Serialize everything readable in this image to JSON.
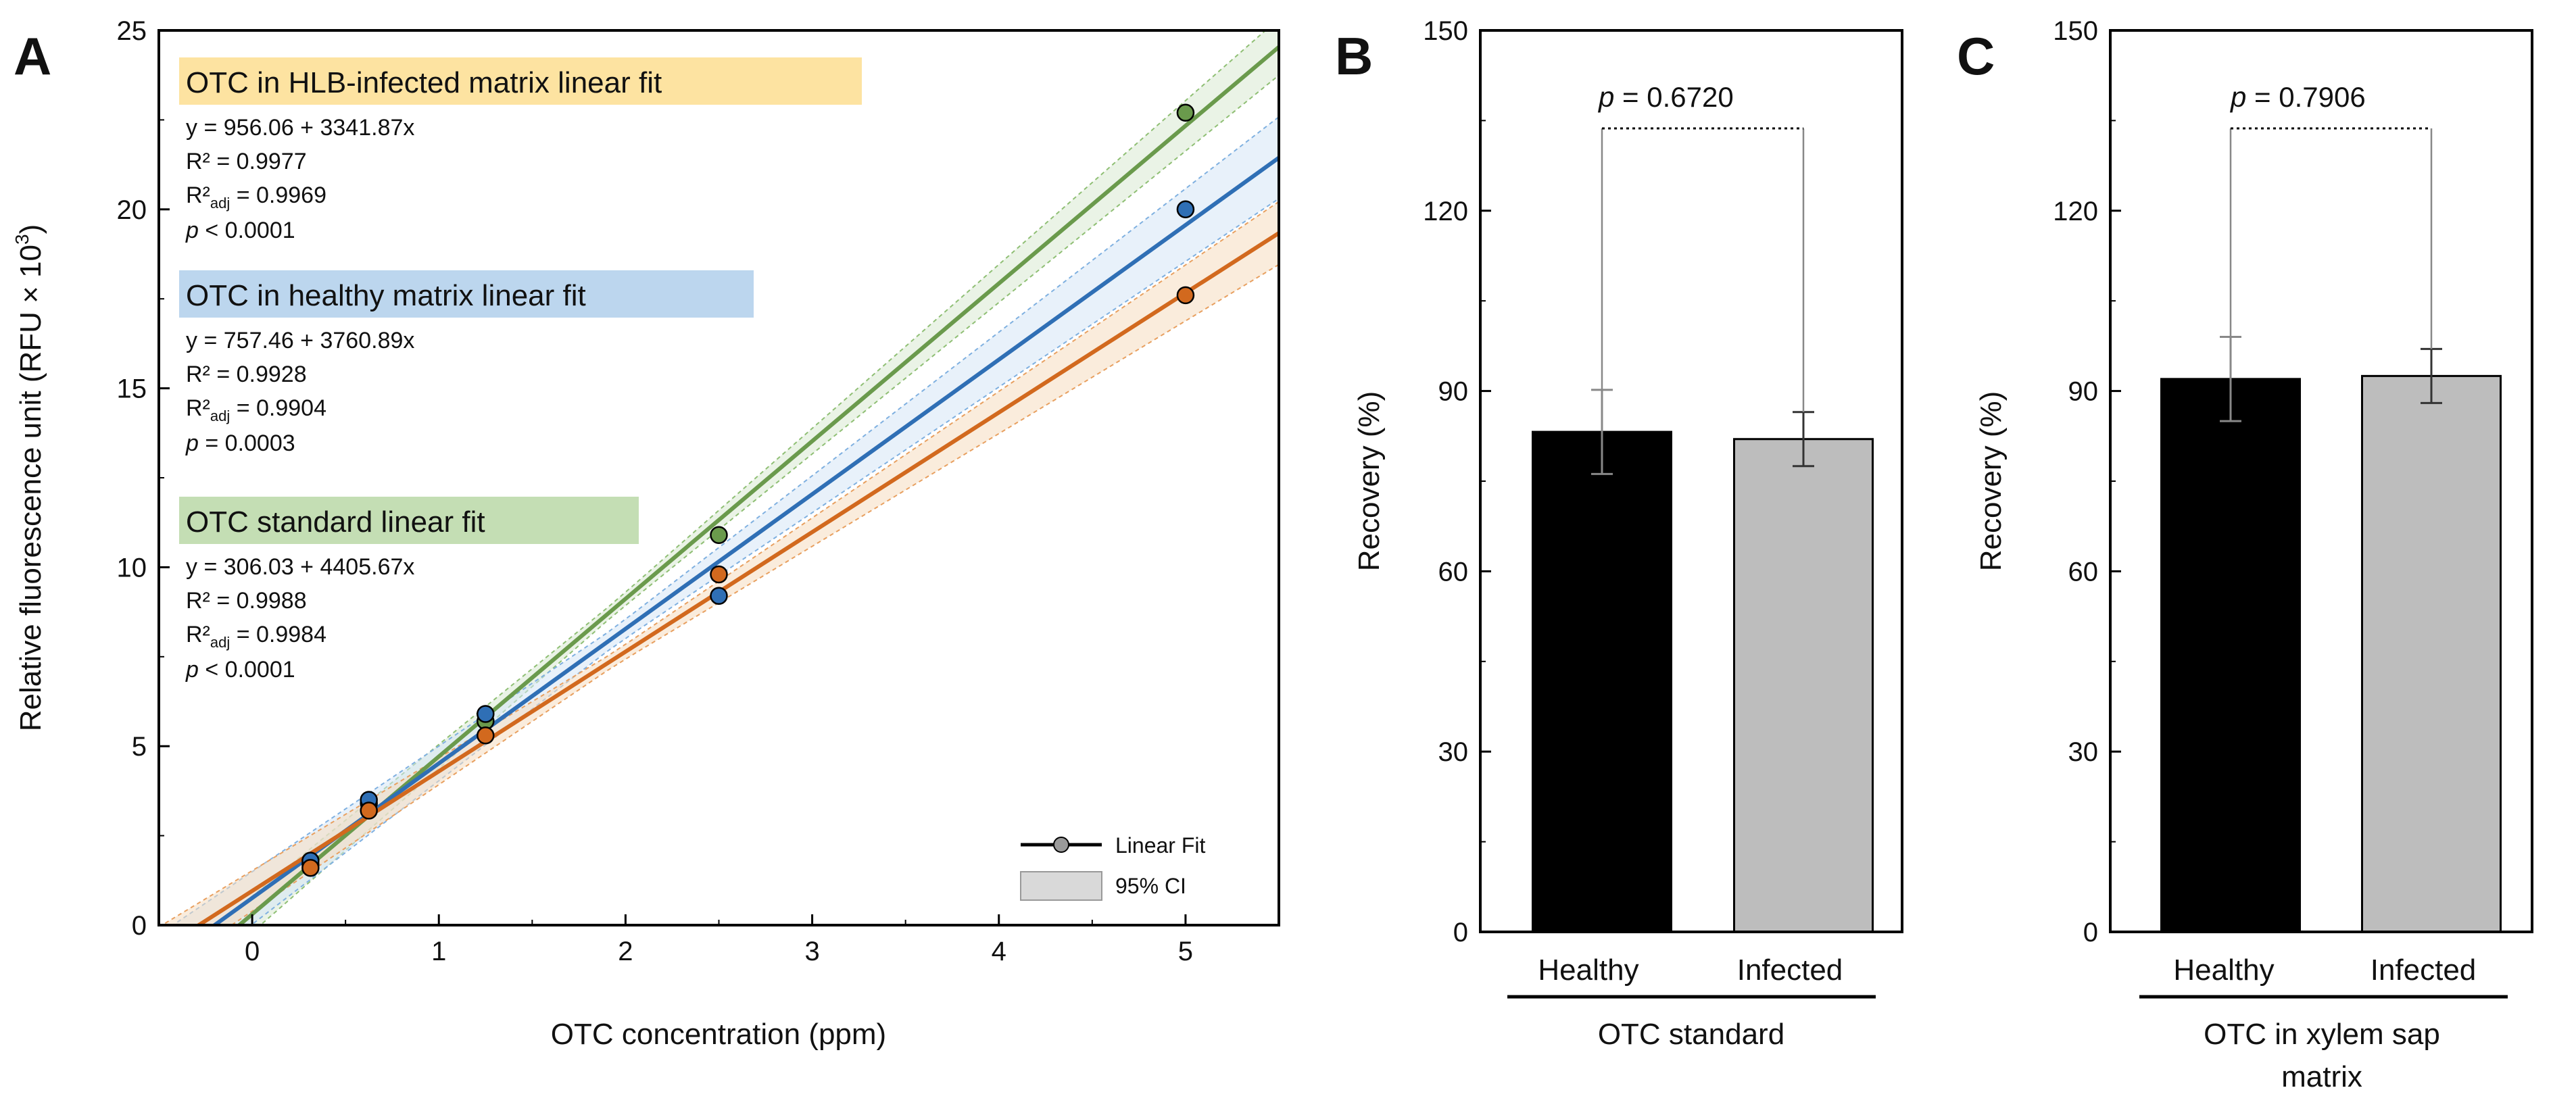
{
  "panels": [
    {
      "id": "A",
      "letter": "A",
      "chart_data": {
        "type": "scatter",
        "xlabel": "OTC concentration  (ppm)",
        "ylabel_main": "Relative fluorescence unit (RFU × 10",
        "ylabel_sup": "3",
        "ylabel_close": ")",
        "xlim": [
          -0.5,
          5.5
        ],
        "ylim": [
          0,
          25
        ],
        "xticks": [
          0,
          1,
          2,
          3,
          4,
          5
        ],
        "yticks": [
          0,
          5,
          10,
          15,
          20,
          25
        ],
        "series": [
          {
            "name": "OTC in HLB-infected matrix linear fit",
            "color": "#5aa0d8",
            "band_color": "#cfe2f3",
            "intercept": 956.06,
            "slope": 3341.87,
            "x": [
              0.3125,
              0.625,
              1.25,
              2.5,
              5.0
            ],
            "y": [
              1.6,
              3.2,
              5.3,
              9.8,
              17.6
            ]
          },
          {
            "name": "OTC in healthy matrix linear fit",
            "color": "#2d6db3",
            "band_color": "#d6e6f5",
            "intercept": 757.46,
            "slope": 3760.89,
            "x": [
              0.3125,
              0.625,
              1.25,
              2.5,
              5.0
            ],
            "y": [
              1.8,
              3.5,
              5.9,
              9.2,
              20.0
            ]
          },
          {
            "name": "OTC standard linear fit",
            "color": "#6a9a4c",
            "band_color": "#d9ead1",
            "intercept": 306.03,
            "slope": 4405.67,
            "x": [
              0.3125,
              0.625,
              1.25,
              2.5,
              5.0
            ],
            "y": [
              1.7,
              3.4,
              5.7,
              10.9,
              22.7
            ]
          }
        ],
        "orange_series": {
          "color": "#d2691e",
          "band_color": "#f6dcc0",
          "x": [
            0.3125,
            0.625,
            1.25,
            2.5,
            5.0
          ],
          "y": [
            1.6,
            3.2,
            5.3,
            9.8,
            17.6
          ]
        },
        "annotations": [
          {
            "label": "OTC in HLB-infected matrix linear fit",
            "highlight": "#fde3a1",
            "eq": "y = 956.06 + 3341.87x",
            "r2": "R² = 0.9977",
            "r2adj": "R²adj = 0.9969",
            "r2adj_main": "R²",
            "r2adj_sub": "adj",
            "r2adj_val": " = 0.9969",
            "p": "p < 0.0001",
            "p_italic": "p",
            "p_rest": " < 0.0001"
          },
          {
            "label": "OTC in healthy matrix linear fit",
            "highlight": "#bcd6ee",
            "eq": "y = 757.46 + 3760.89x",
            "r2": "R² = 0.9928",
            "r2adj_main": "R²",
            "r2adj_sub": "adj",
            "r2adj_val": " = 0.9904",
            "p_italic": "p",
            "p_rest": " = 0.0003"
          },
          {
            "label": "OTC standard linear fit",
            "highlight": "#c4deb4",
            "eq": "y = 306.03 + 4405.67x",
            "r2": "R² = 0.9988",
            "r2adj_main": "R²",
            "r2adj_sub": "adj",
            "r2adj_val": " = 0.9984",
            "p_italic": "p",
            "p_rest": " < 0.0001"
          }
        ],
        "legend": {
          "line_label": "Linear Fit",
          "band_label": "95% CI",
          "placement": "bottom-right"
        }
      }
    },
    {
      "id": "B",
      "letter": "B",
      "chart_data": {
        "type": "bar",
        "categories": [
          "Healthy",
          "Infected"
        ],
        "values": [
          83.2,
          82.0
        ],
        "errors": [
          7.0,
          4.5
        ],
        "colors": [
          "#000000",
          "#bdbdbd"
        ],
        "ylabel": "Recovery  (%)",
        "ylim": [
          0,
          150
        ],
        "yticks": [
          0,
          30,
          60,
          90,
          120,
          150
        ],
        "group_label": "OTC standard",
        "p_italic": "p",
        "p_rest": " = 0.6720"
      }
    },
    {
      "id": "C",
      "letter": "C",
      "chart_data": {
        "type": "bar",
        "categories": [
          "Healthy",
          "Infected"
        ],
        "values": [
          92.0,
          92.5
        ],
        "errors": [
          7.0,
          4.5
        ],
        "colors": [
          "#000000",
          "#bdbdbd"
        ],
        "ylabel": "Recovery  (%)",
        "ylim": [
          0,
          150
        ],
        "yticks": [
          0,
          30,
          60,
          90,
          120,
          150
        ],
        "group_label_line1": "OTC in xylem sap",
        "group_label_line2": "matrix",
        "p_italic": "p",
        "p_rest": " = 0.7906"
      }
    }
  ]
}
